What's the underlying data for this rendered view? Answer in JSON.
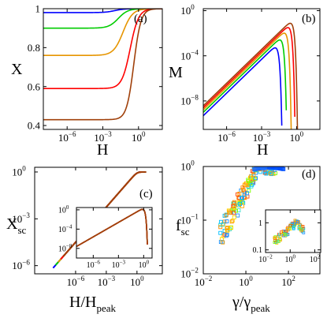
{
  "chart_data": [
    {
      "panel": "a",
      "type": "line",
      "panel_label": "(a)",
      "xlabel": "H",
      "ylabel": "X",
      "xscale": "log",
      "xlim": [
        1e-08,
        100
      ],
      "ylim": [
        0.38,
        1.0
      ],
      "xticks": [
        {
          "v": 1e-06,
          "label": "10"
        },
        {
          "v": 0.001,
          "label": "10"
        },
        {
          "v": 1,
          "label": "10"
        }
      ],
      "xtick_exponents": [
        "−6",
        "−3",
        "0"
      ],
      "yticks": [
        {
          "v": 0.4,
          "label": "0.4"
        },
        {
          "v": 0.6,
          "label": "0.6"
        },
        {
          "v": 0.8,
          "label": "0.8"
        },
        {
          "v": 1.0,
          "label": "1"
        }
      ],
      "series": [
        {
          "color": "#0000ff",
          "x0": 0.98,
          "x_half": 0.01,
          "width": 0.8
        },
        {
          "color": "#00cc00",
          "x0": 0.9,
          "x_half": 0.02,
          "width": 0.8
        },
        {
          "color": "#e69500",
          "x0": 0.76,
          "x_half": 0.05,
          "width": 0.8
        },
        {
          "color": "#ff0000",
          "x0": 0.59,
          "x_half": 0.2,
          "width": 0.7
        },
        {
          "color": "#a0400a",
          "x0": 0.43,
          "x_half": 0.4,
          "width": 0.6
        }
      ]
    },
    {
      "panel": "b",
      "type": "line",
      "panel_label": "(b)",
      "xlabel": "H",
      "ylabel": "M",
      "xscale": "log",
      "yscale": "log",
      "xlim": [
        1e-08,
        100
      ],
      "ylim": [
        3e-11,
        1.5
      ],
      "xticks": [
        {
          "v": 1e-06,
          "label": "10"
        },
        {
          "v": 0.001,
          "label": "10"
        },
        {
          "v": 1,
          "label": "10"
        }
      ],
      "xtick_exponents": [
        "−6",
        "−3",
        "0"
      ],
      "yticks": [
        {
          "v": 1e-08,
          "label": "10"
        },
        {
          "v": 0.0001,
          "label": "10"
        },
        {
          "v": 1,
          "label": "10"
        }
      ],
      "ytick_exponents": [
        "−8",
        "−4",
        "0"
      ],
      "series": [
        {
          "color": "#0000ff",
          "peak_x": 0.02,
          "peak_y": 0.0004
        },
        {
          "color": "#00cc00",
          "peak_x": 0.05,
          "peak_y": 0.002
        },
        {
          "color": "#e69500",
          "peak_x": 0.12,
          "peak_y": 0.008
        },
        {
          "color": "#ff0000",
          "peak_x": 0.25,
          "peak_y": 0.025
        },
        {
          "color": "#a0400a",
          "peak_x": 0.4,
          "peak_y": 0.06
        }
      ]
    },
    {
      "panel": "c",
      "type": "line",
      "panel_label": "(c)",
      "xlabel": "H/H",
      "xlabel_sub": "peak",
      "ylabel": "X",
      "ylabel_sub": "sc",
      "xscale": "log",
      "yscale": "log",
      "xlim": [
        1e-10,
        300
      ],
      "ylim": [
        3e-07,
        2.0
      ],
      "xticks": [
        {
          "v": 1e-06,
          "label": "10"
        },
        {
          "v": 0.001,
          "label": "10"
        },
        {
          "v": 1,
          "label": "10"
        }
      ],
      "xtick_exponents": [
        "−6",
        "−3",
        "0"
      ],
      "yticks": [
        {
          "v": 1e-06,
          "label": "10"
        },
        {
          "v": 0.001,
          "label": "10"
        },
        {
          "v": 1,
          "label": "10"
        }
      ],
      "ytick_exponents": [
        "−6",
        "−3",
        "0"
      ],
      "series_colors": [
        "#0000ff",
        "#00cc00",
        "#e69500",
        "#ff0000",
        "#a0400a"
      ],
      "collapse": {
        "slope": 0.75,
        "plateau_x": 2.0
      },
      "inset": {
        "xticks": [
          {
            "v": 1e-06,
            "label": "10"
          },
          {
            "v": 0.001,
            "label": "10"
          },
          {
            "v": 1,
            "label": "10"
          }
        ],
        "xtick_exponents": [
          "−6",
          "−3",
          "0"
        ],
        "yticks": [
          {
            "v": 1e-08,
            "label": "10"
          },
          {
            "v": 0.0001,
            "label": "10"
          },
          {
            "v": 1,
            "label": "10"
          }
        ],
        "ytick_exponents": [
          "−8",
          "−4",
          "0"
        ]
      }
    },
    {
      "panel": "d",
      "type": "scatter",
      "panel_label": "(d)",
      "xlabel": "γ/γ",
      "xlabel_sub": "peak",
      "ylabel": "f",
      "ylabel_sub": "sc",
      "xscale": "log",
      "yscale": "log",
      "xlim": [
        0.01,
        3000
      ],
      "ylim": [
        0.01,
        1.0
      ],
      "xticks": [
        {
          "v": 0.01,
          "label": "10"
        },
        {
          "v": 1,
          "label": "10"
        },
        {
          "v": 100,
          "label": "10"
        }
      ],
      "xtick_exponents": [
        "−2",
        "0",
        "2"
      ],
      "yticks": [
        {
          "v": 0.01,
          "label": "10"
        },
        {
          "v": 0.1,
          "label": "10"
        },
        {
          "v": 1,
          "label": "10"
        }
      ],
      "ytick_exponents": [
        "−2",
        "−1",
        "0"
      ],
      "inset": {
        "xticks": [
          {
            "v": 0.01,
            "label": "10"
          },
          {
            "v": 1,
            "label": "10"
          },
          {
            "v": 100,
            "label": "10"
          }
        ],
        "xtick_exponents": [
          "−2",
          "0",
          "2"
        ],
        "yticks": [
          {
            "v": 0.1,
            "label": "0.1"
          },
          {
            "v": 1,
            "label": "1"
          }
        ]
      }
    }
  ]
}
